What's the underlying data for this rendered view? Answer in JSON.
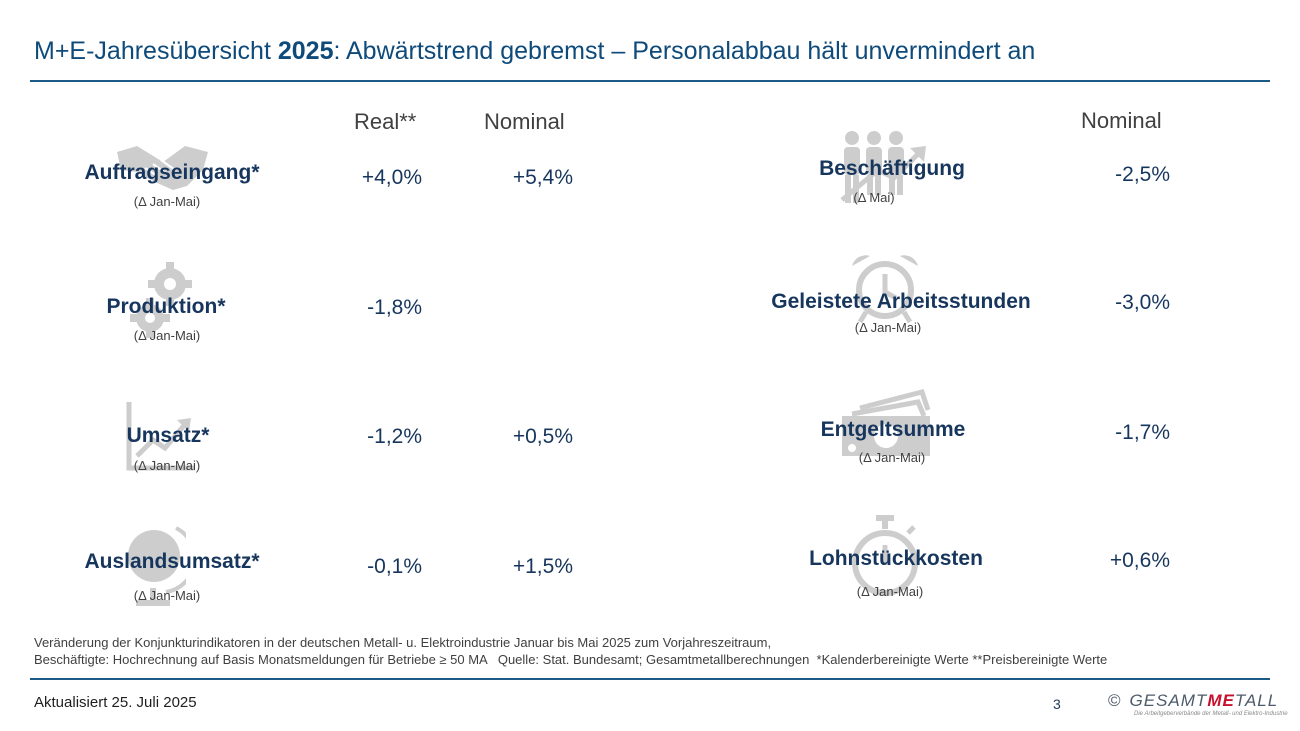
{
  "title": {
    "prefix": "M+E-Jahresübersicht ",
    "year": "2025",
    "rest": ": Abwärtstrend gebremst – Personalabbau hält unvermindert an"
  },
  "left_headers": {
    "real": "Real**",
    "nominal": "Nominal"
  },
  "right_headers": {
    "nominal": "Nominal"
  },
  "left_rows": [
    {
      "label": "Auftragseingang*",
      "sub": "(Δ Jan-Mai)",
      "real": "+4,0%",
      "nominal": "+5,4%",
      "icon": "handshake-icon"
    },
    {
      "label": "Produktion*",
      "sub": "(Δ Jan-Mai)",
      "real": "-1,8%",
      "nominal": "",
      "icon": "gears-icon"
    },
    {
      "label": "Umsatz*",
      "sub": "(Δ Jan-Mai)",
      "real": "-1,2%",
      "nominal": "+0,5%",
      "icon": "trend-chart-icon"
    },
    {
      "label": "Auslandsumsatz*",
      "sub": "(Δ Jan-Mai)",
      "real": "-0,1%",
      "nominal": "+1,5%",
      "icon": "globe-icon"
    }
  ],
  "right_rows": [
    {
      "label": "Beschäftigung",
      "sub": "(Δ Mai)",
      "nominal": "-2,5%",
      "icon": "people-icon"
    },
    {
      "label": "Geleistete Arbeitsstunden",
      "sub": "(Δ Jan-Mai)",
      "nominal": "-3,0%",
      "icon": "alarm-clock-icon"
    },
    {
      "label": "Entgeltsumme",
      "sub": "(Δ Jan-Mai)",
      "nominal": "-1,7%",
      "icon": "money-icon"
    },
    {
      "label": "Lohnstückkosten",
      "sub": "(Δ Jan-Mai)",
      "nominal": "+0,6%",
      "icon": "stopwatch-icon"
    }
  ],
  "footnote": {
    "line1": "Veränderung der Konjunkturindikatoren in der deutschen Metall- u. Elektroindustrie Januar bis Mai 2025 zum Vorjahreszeitraum,",
    "line2": "Beschäftigte: Hochrechnung auf Basis Monatsmeldungen für Betriebe ≥ 50 MA   Quelle: Stat. Bundesamt; Gesamtmetallberechnungen  *Kalenderbereinigte Werte **Preisbereinigte Werte"
  },
  "footer": {
    "updated": "Aktualisiert 25. Juli 2025",
    "page_number": "3",
    "logo_symbol": "©",
    "logo_pre": "GESAMT",
    "logo_me": "ME",
    "logo_post": "TALL",
    "logo_tagline": "Die Arbeitgeberverbände der Metall- und Elektro-Industrie"
  },
  "colors": {
    "title": "#0e4a7a",
    "text": "#17365d",
    "rule": "#1d5a86",
    "icon": "#c8c8c8",
    "logo_accent": "#c8102e"
  }
}
